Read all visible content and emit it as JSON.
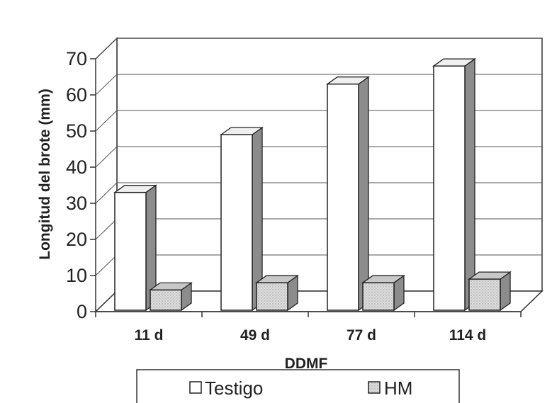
{
  "chart_data": {
    "type": "bar",
    "title": "",
    "xlabel": "DDMF",
    "ylabel": "Longitud del brote (mm)",
    "categories": [
      "11 d",
      "49 d",
      "77 d",
      "114 d"
    ],
    "yticks": [
      "0",
      "10",
      "20",
      "30",
      "40",
      "50",
      "60",
      "70"
    ],
    "ylim": [
      0,
      70
    ],
    "series": [
      {
        "name": "Testigo",
        "values": [
          33,
          49,
          63,
          68
        ],
        "color": "#ffffff"
      },
      {
        "name": "HM",
        "values": [
          6,
          8,
          8,
          9
        ],
        "color": "#d9d9d9"
      }
    ],
    "legend_placement": "bottom",
    "grid": true
  }
}
